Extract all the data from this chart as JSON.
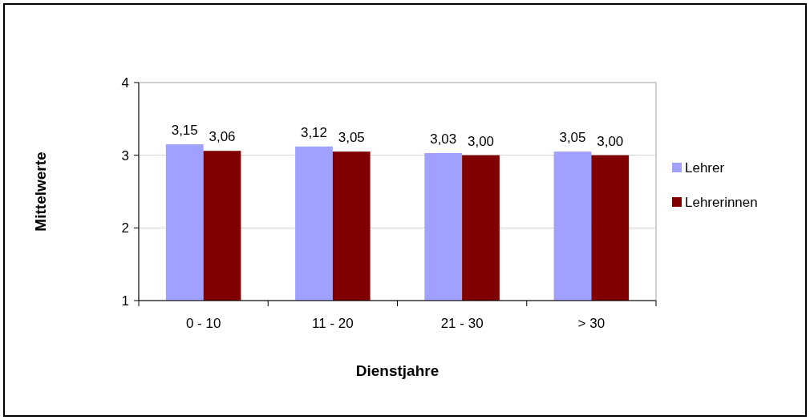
{
  "chart_data": {
    "type": "bar",
    "xlabel": "Dienstjahre",
    "ylabel": "Mittelwerte",
    "categories": [
      "0 - 10",
      "11 - 20",
      "21 - 30",
      "> 30"
    ],
    "series": [
      {
        "name": "Lehrer",
        "color": "#a0a0ff",
        "values": [
          3.15,
          3.12,
          3.03,
          3.05
        ],
        "value_labels": [
          "3,15",
          "3,12",
          "3,03",
          "3,05"
        ]
      },
      {
        "name": "Lehrerinnen",
        "color": "#800000",
        "values": [
          3.06,
          3.05,
          3.0,
          3.0
        ],
        "value_labels": [
          "3,06",
          "3,05",
          "3,00",
          "3,00"
        ]
      }
    ],
    "ylim": [
      1,
      4
    ],
    "yticks": [
      1,
      2,
      3,
      4
    ],
    "grid": "y",
    "legend": "right"
  }
}
